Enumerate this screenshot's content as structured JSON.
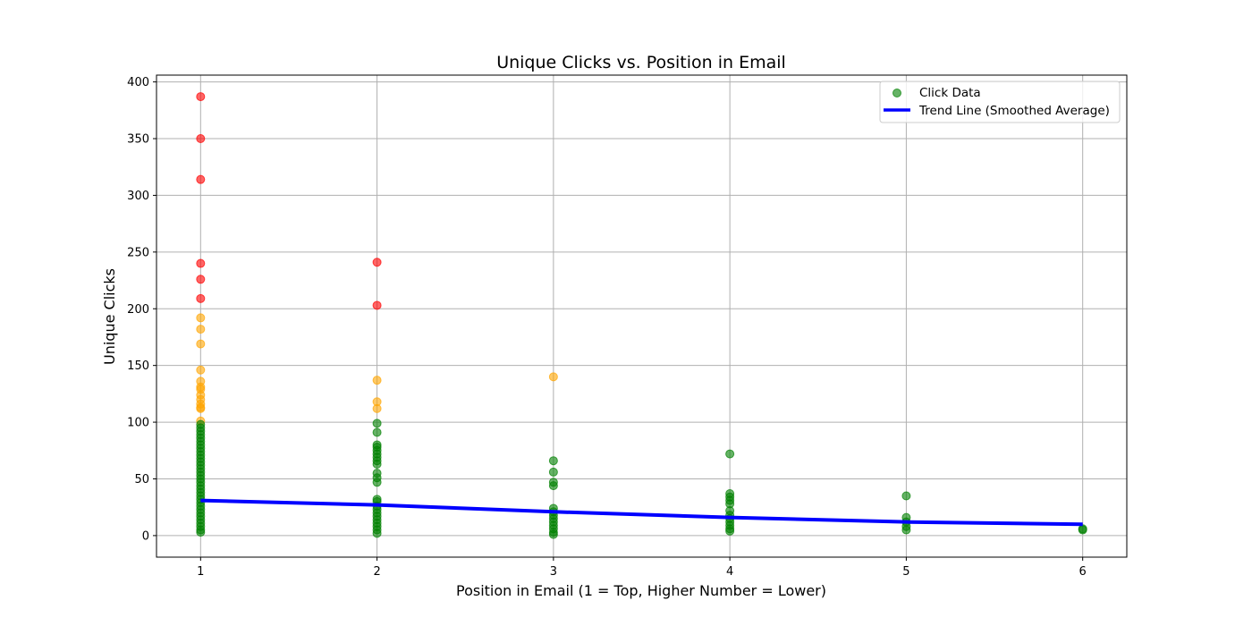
{
  "chart_data": {
    "type": "scatter",
    "title": "Unique Clicks vs. Position in Email",
    "xlabel": "Position in Email (1 = Top, Higher Number = Lower)",
    "ylabel": "Unique Clicks",
    "xlim": [
      0.75,
      6.25
    ],
    "ylim": [
      -19,
      406
    ],
    "x_ticks": [
      1,
      2,
      3,
      4,
      5,
      6
    ],
    "y_ticks": [
      0,
      50,
      100,
      150,
      200,
      250,
      300,
      350,
      400
    ],
    "grid": true,
    "legend_position": "top-right",
    "colors": {
      "low": "#008000",
      "mid": "#ffa500",
      "high": "#ff0000",
      "trend": "#0000ff",
      "grid": "#b0b0b0"
    },
    "series": [
      {
        "name": "Click Data",
        "marker_color": "#008000",
        "points": [
          {
            "x": 1,
            "y": 387
          },
          {
            "x": 1,
            "y": 350
          },
          {
            "x": 1,
            "y": 314
          },
          {
            "x": 1,
            "y": 240
          },
          {
            "x": 1,
            "y": 226
          },
          {
            "x": 1,
            "y": 209
          },
          {
            "x": 1,
            "y": 192
          },
          {
            "x": 1,
            "y": 182
          },
          {
            "x": 1,
            "y": 169
          },
          {
            "x": 1,
            "y": 146
          },
          {
            "x": 1,
            "y": 136
          },
          {
            "x": 1,
            "y": 131
          },
          {
            "x": 1,
            "y": 129
          },
          {
            "x": 1,
            "y": 124
          },
          {
            "x": 1,
            "y": 120
          },
          {
            "x": 1,
            "y": 116
          },
          {
            "x": 1,
            "y": 113
          },
          {
            "x": 1,
            "y": 112
          },
          {
            "x": 1,
            "y": 101
          },
          {
            "x": 1,
            "y": 98
          },
          {
            "x": 1,
            "y": 95
          },
          {
            "x": 1,
            "y": 92
          },
          {
            "x": 1,
            "y": 89
          },
          {
            "x": 1,
            "y": 86
          },
          {
            "x": 1,
            "y": 83
          },
          {
            "x": 1,
            "y": 80
          },
          {
            "x": 1,
            "y": 77
          },
          {
            "x": 1,
            "y": 74
          },
          {
            "x": 1,
            "y": 71
          },
          {
            "x": 1,
            "y": 68
          },
          {
            "x": 1,
            "y": 65
          },
          {
            "x": 1,
            "y": 62
          },
          {
            "x": 1,
            "y": 59
          },
          {
            "x": 1,
            "y": 56
          },
          {
            "x": 1,
            "y": 53
          },
          {
            "x": 1,
            "y": 50
          },
          {
            "x": 1,
            "y": 47
          },
          {
            "x": 1,
            "y": 44
          },
          {
            "x": 1,
            "y": 41
          },
          {
            "x": 1,
            "y": 38
          },
          {
            "x": 1,
            "y": 35
          },
          {
            "x": 1,
            "y": 32
          },
          {
            "x": 1,
            "y": 29
          },
          {
            "x": 1,
            "y": 26
          },
          {
            "x": 1,
            "y": 23
          },
          {
            "x": 1,
            "y": 20
          },
          {
            "x": 1,
            "y": 17
          },
          {
            "x": 1,
            "y": 14
          },
          {
            "x": 1,
            "y": 11
          },
          {
            "x": 1,
            "y": 8
          },
          {
            "x": 1,
            "y": 5
          },
          {
            "x": 1,
            "y": 3
          },
          {
            "x": 2,
            "y": 241
          },
          {
            "x": 2,
            "y": 203
          },
          {
            "x": 2,
            "y": 137
          },
          {
            "x": 2,
            "y": 118
          },
          {
            "x": 2,
            "y": 112
          },
          {
            "x": 2,
            "y": 99
          },
          {
            "x": 2,
            "y": 91
          },
          {
            "x": 2,
            "y": 80
          },
          {
            "x": 2,
            "y": 78
          },
          {
            "x": 2,
            "y": 75
          },
          {
            "x": 2,
            "y": 72
          },
          {
            "x": 2,
            "y": 69
          },
          {
            "x": 2,
            "y": 66
          },
          {
            "x": 2,
            "y": 63
          },
          {
            "x": 2,
            "y": 55
          },
          {
            "x": 2,
            "y": 51
          },
          {
            "x": 2,
            "y": 47
          },
          {
            "x": 2,
            "y": 32
          },
          {
            "x": 2,
            "y": 30
          },
          {
            "x": 2,
            "y": 26
          },
          {
            "x": 2,
            "y": 23
          },
          {
            "x": 2,
            "y": 20
          },
          {
            "x": 2,
            "y": 17
          },
          {
            "x": 2,
            "y": 14
          },
          {
            "x": 2,
            "y": 11
          },
          {
            "x": 2,
            "y": 8
          },
          {
            "x": 2,
            "y": 5
          },
          {
            "x": 2,
            "y": 2
          },
          {
            "x": 3,
            "y": 140
          },
          {
            "x": 3,
            "y": 66
          },
          {
            "x": 3,
            "y": 56
          },
          {
            "x": 3,
            "y": 47
          },
          {
            "x": 3,
            "y": 44
          },
          {
            "x": 3,
            "y": 24
          },
          {
            "x": 3,
            "y": 21
          },
          {
            "x": 3,
            "y": 18
          },
          {
            "x": 3,
            "y": 15
          },
          {
            "x": 3,
            "y": 12
          },
          {
            "x": 3,
            "y": 9
          },
          {
            "x": 3,
            "y": 6
          },
          {
            "x": 3,
            "y": 3
          },
          {
            "x": 3,
            "y": 1
          },
          {
            "x": 4,
            "y": 72
          },
          {
            "x": 4,
            "y": 37
          },
          {
            "x": 4,
            "y": 34
          },
          {
            "x": 4,
            "y": 31
          },
          {
            "x": 4,
            "y": 28
          },
          {
            "x": 4,
            "y": 22
          },
          {
            "x": 4,
            "y": 18
          },
          {
            "x": 4,
            "y": 15
          },
          {
            "x": 4,
            "y": 12
          },
          {
            "x": 4,
            "y": 9
          },
          {
            "x": 4,
            "y": 6
          },
          {
            "x": 4,
            "y": 4
          },
          {
            "x": 5,
            "y": 35
          },
          {
            "x": 5,
            "y": 16
          },
          {
            "x": 5,
            "y": 12
          },
          {
            "x": 5,
            "y": 8
          },
          {
            "x": 5,
            "y": 5
          },
          {
            "x": 6,
            "y": 6
          },
          {
            "x": 6,
            "y": 5
          }
        ]
      },
      {
        "name": "Trend Line (Smoothed Average)",
        "type": "line",
        "color": "#0000ff",
        "points": [
          {
            "x": 1,
            "y": 31
          },
          {
            "x": 2,
            "y": 27
          },
          {
            "x": 3,
            "y": 21
          },
          {
            "x": 4,
            "y": 16
          },
          {
            "x": 5,
            "y": 12
          },
          {
            "x": 6,
            "y": 10
          }
        ]
      }
    ]
  }
}
